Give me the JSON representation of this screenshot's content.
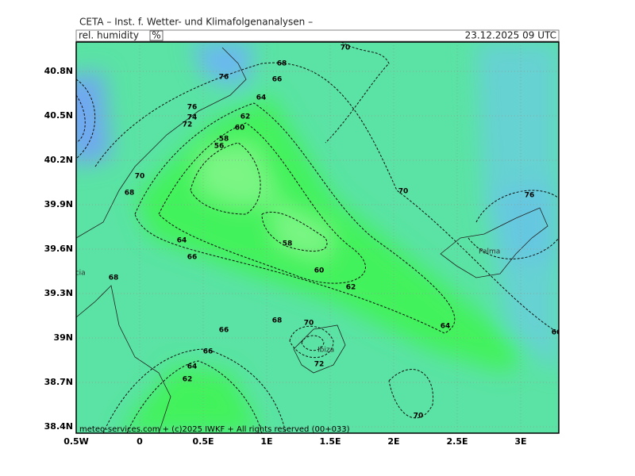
{
  "header": {
    "title": "CETA – Inst. f. Wetter- und Klimafolgenanalysen –",
    "parameter": "rel. humidity",
    "unit": "%",
    "valid_time": "23.12.2025 09 UTC"
  },
  "lat_labels": [
    "40.8N",
    "40.5N",
    "40.2N",
    "39.9N",
    "39.6N",
    "39.3N",
    "39N",
    "38.7N",
    "38.4N"
  ],
  "lon_labels": [
    "0.5W",
    "0",
    "0.5E",
    "1E",
    "1.5E",
    "2E",
    "2.5E",
    "3E"
  ],
  "places": [
    "Valencia",
    "Palma",
    "Ibiza"
  ],
  "contour_labels": [
    70,
    68,
    76,
    66,
    64,
    76,
    74,
    72,
    62,
    60,
    58,
    56,
    70,
    68,
    70,
    76,
    64,
    58,
    66,
    60,
    68,
    62,
    68,
    70,
    64,
    66,
    66,
    72,
    64,
    62,
    70,
    66
  ],
  "footer": "meteo-services.com + (c)2025 IWKF + All rights reserved (00+033)"
}
